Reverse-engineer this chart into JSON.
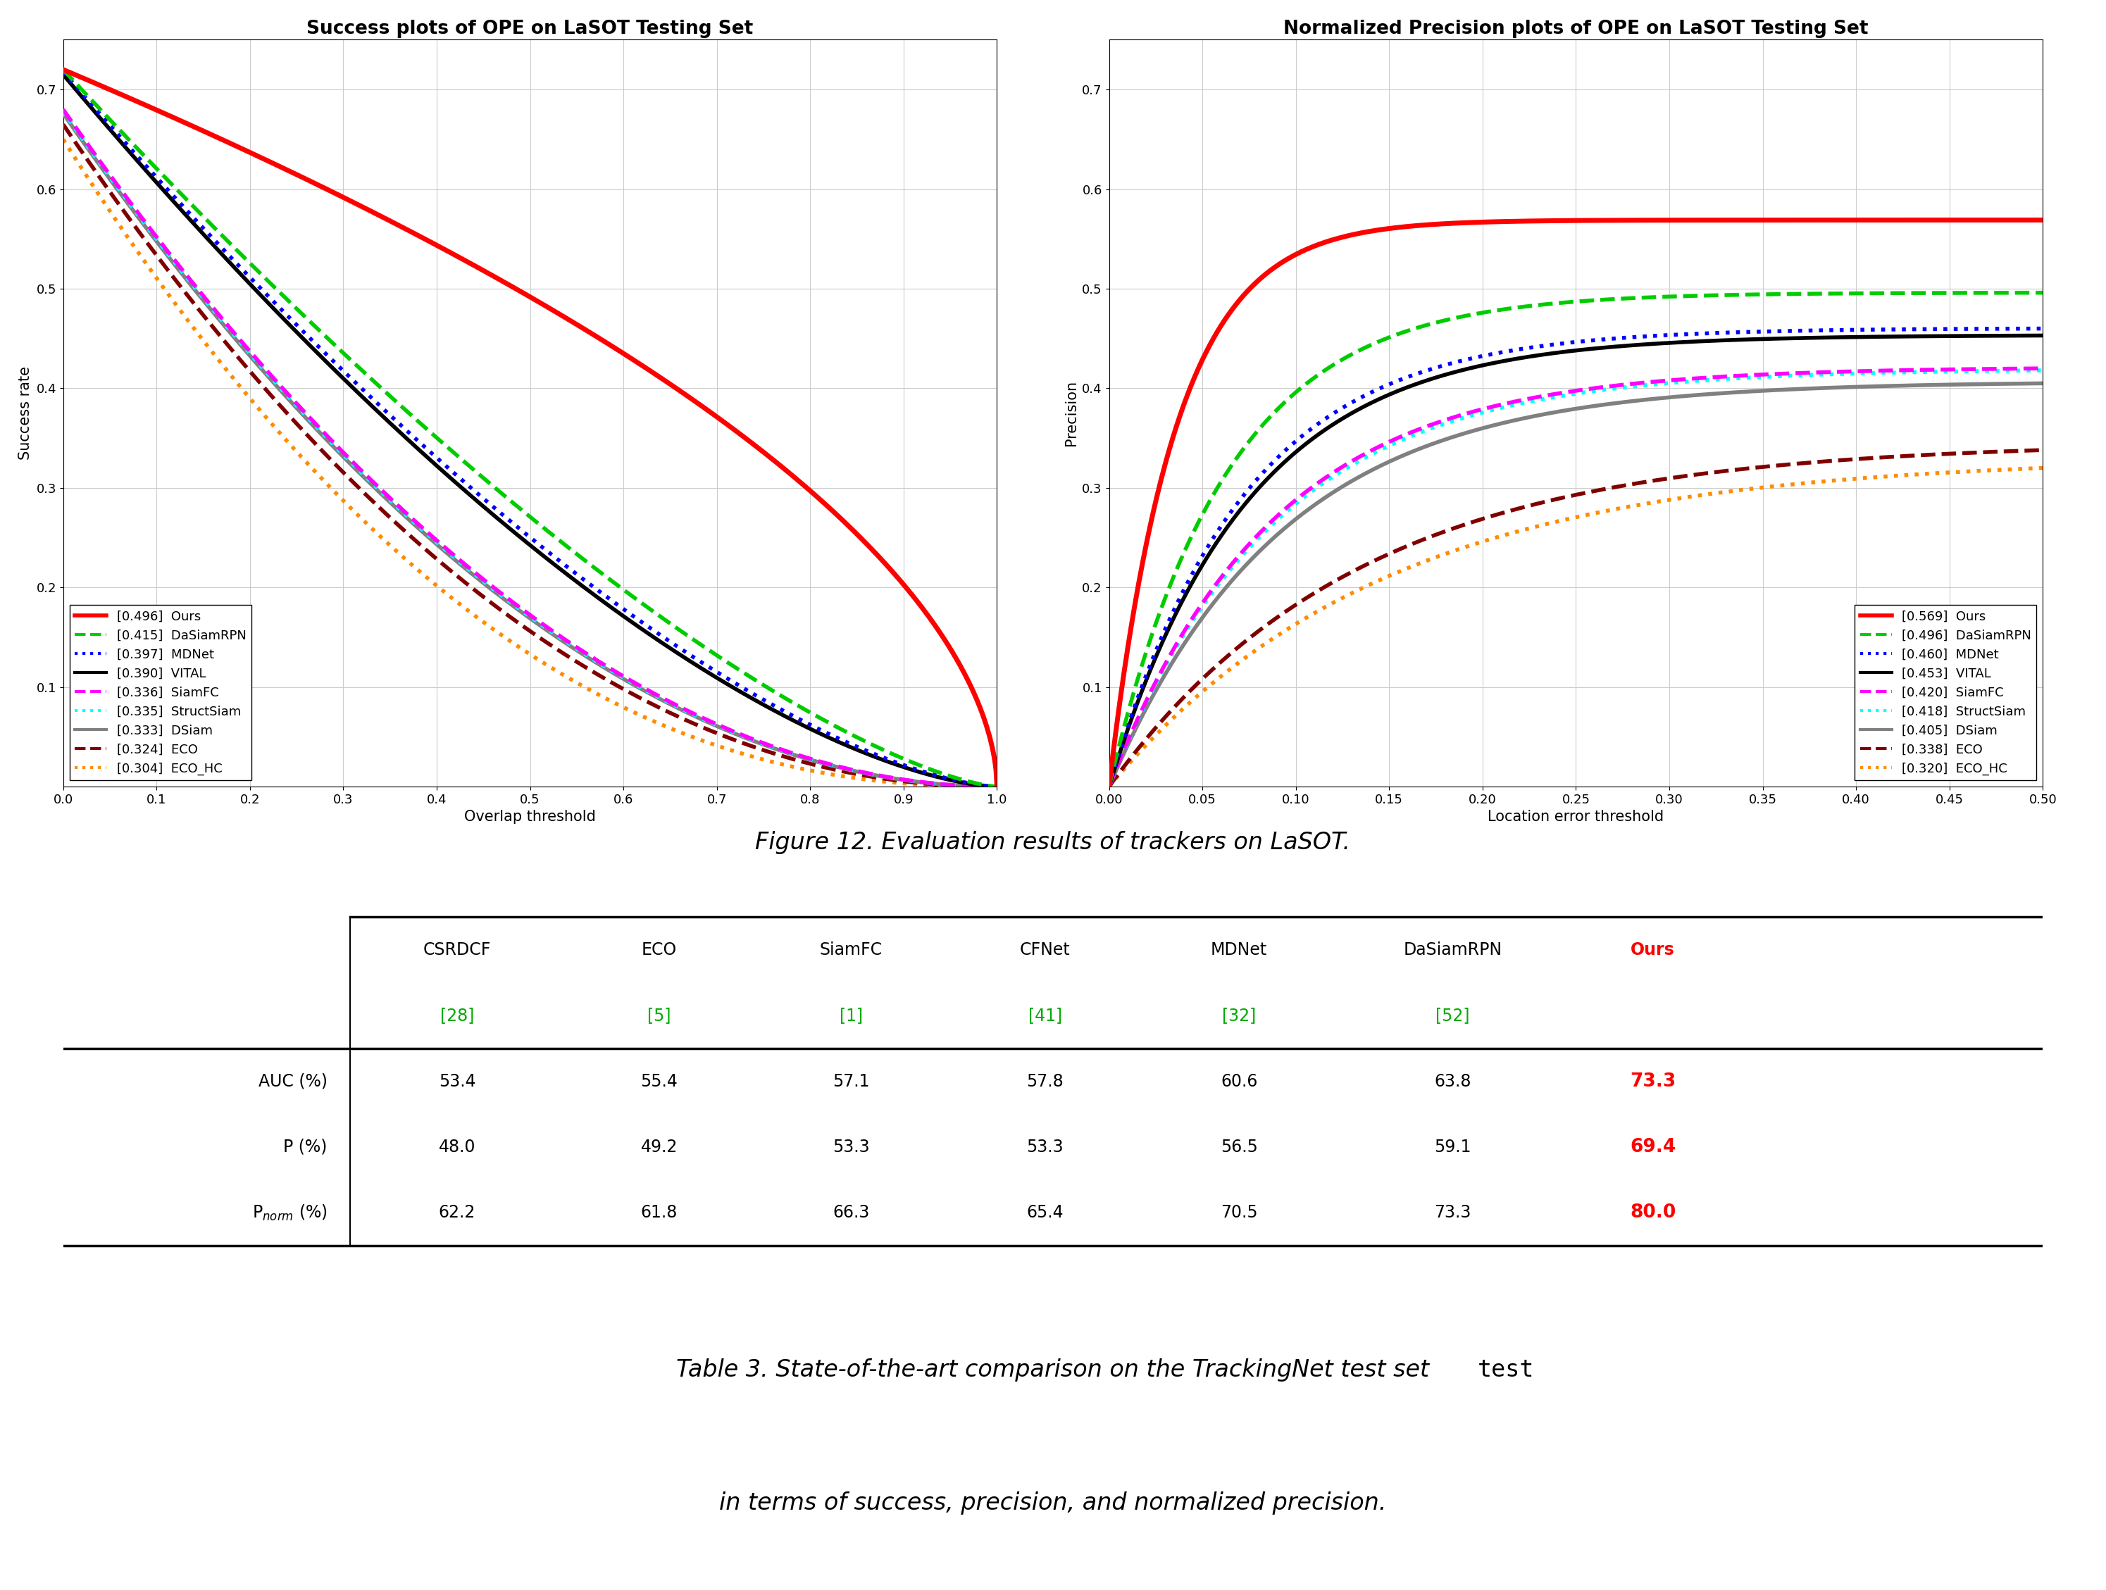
{
  "fig_width": 29.9,
  "fig_height": 22.58,
  "bg_color": "#ffffff",
  "plot1_title": "Success plots of OPE on LaSOT Testing Set",
  "plot1_xlabel": "Overlap threshold",
  "plot1_ylabel": "Success rate",
  "plot1_xlim": [
    0,
    1
  ],
  "plot1_ylim": [
    0,
    0.75
  ],
  "plot1_xticks": [
    0,
    0.1,
    0.2,
    0.3,
    0.4,
    0.5,
    0.6,
    0.7,
    0.8,
    0.9,
    1
  ],
  "plot1_yticks": [
    0.1,
    0.2,
    0.3,
    0.4,
    0.5,
    0.6,
    0.7
  ],
  "plot2_title": "Normalized Precision plots of OPE on LaSOT Testing Set",
  "plot2_xlabel": "Location error threshold",
  "plot2_ylabel": "Precision",
  "plot2_xlim": [
    0,
    0.5
  ],
  "plot2_ylim": [
    0,
    0.75
  ],
  "plot2_xticks": [
    0,
    0.05,
    0.1,
    0.15,
    0.2,
    0.25,
    0.3,
    0.35,
    0.4,
    0.45,
    0.5
  ],
  "plot2_yticks": [
    0.1,
    0.2,
    0.3,
    0.4,
    0.5,
    0.6,
    0.7
  ],
  "trackers": [
    {
      "name": "Ours",
      "score1": "0.496",
      "score2": "0.569",
      "color": "#ff0000",
      "linestyle": "-",
      "linewidth": 5,
      "zorder": 10,
      "alpha1": 0.55,
      "ystart1": 0.72,
      "k2": 28.0
    },
    {
      "name": "DaSiamRPN",
      "score1": "0.415",
      "score2": "0.496",
      "color": "#00cc00",
      "linestyle": "--",
      "linewidth": 4,
      "zorder": 9,
      "alpha1": 1.41,
      "ystart1": 0.72,
      "k2": 16.0
    },
    {
      "name": "MDNet",
      "score1": "0.397",
      "score2": "0.460",
      "color": "#0000ff",
      "linestyle": ":",
      "linewidth": 4,
      "zorder": 8,
      "alpha1": 1.52,
      "ystart1": 0.718,
      "k2": 14.0
    },
    {
      "name": "VITAL",
      "score1": "0.390",
      "score2": "0.453",
      "color": "#000000",
      "linestyle": "-",
      "linewidth": 4,
      "zorder": 7,
      "alpha1": 1.56,
      "ystart1": 0.715,
      "k2": 13.5
    },
    {
      "name": "SiamFC",
      "score1": "0.336",
      "score2": "0.420",
      "color": "#ff00ff",
      "linestyle": "--",
      "linewidth": 4,
      "zorder": 6,
      "alpha1": 1.98,
      "ystart1": 0.68,
      "k2": 11.5
    },
    {
      "name": "StructSiam",
      "score1": "0.335",
      "score2": "0.418",
      "color": "#00ffff",
      "linestyle": ":",
      "linewidth": 4,
      "zorder": 5,
      "alpha1": 1.99,
      "ystart1": 0.678,
      "k2": 11.3
    },
    {
      "name": "DSiam",
      "score1": "0.333",
      "score2": "0.405",
      "color": "#808080",
      "linestyle": "-",
      "linewidth": 4,
      "zorder": 4,
      "alpha1": 2.0,
      "ystart1": 0.676,
      "k2": 10.8
    },
    {
      "name": "ECO",
      "score1": "0.324",
      "score2": "0.338",
      "color": "#800000",
      "linestyle": "--",
      "linewidth": 4,
      "zorder": 3,
      "alpha1": 2.09,
      "ystart1": 0.665,
      "k2": 7.5
    },
    {
      "name": "ECO_HC",
      "score1": "0.304",
      "score2": "0.320",
      "color": "#ff8c00",
      "linestyle": ":",
      "linewidth": 4,
      "zorder": 2,
      "alpha1": 2.29,
      "ystart1": 0.65,
      "k2": 6.8
    }
  ],
  "figure_caption": "Figure 12. Evaluation results of trackers on LaSOT.",
  "table_headers": [
    "CSRDCF",
    "ECO",
    "SiamFC",
    "CFNet",
    "MDNet",
    "DaSiamRPN",
    "Ours"
  ],
  "table_refs": [
    "[28]",
    "[5]",
    "[1]",
    "[41]",
    "[32]",
    "[52]",
    ""
  ],
  "table_rows": [
    {
      "label": "AUC (%)",
      "values": [
        "53.4",
        "55.4",
        "57.1",
        "57.8",
        "60.6",
        "63.8",
        "73.3"
      ]
    },
    {
      "label": "P (%)",
      "values": [
        "48.0",
        "49.2",
        "53.3",
        "53.3",
        "56.5",
        "59.1",
        "69.4"
      ]
    },
    {
      "label": "P_norm (%)",
      "values": [
        "62.2",
        "61.8",
        "66.3",
        "65.4",
        "70.5",
        "73.3",
        "80.0"
      ]
    }
  ],
  "ref_color": "#00aa00"
}
